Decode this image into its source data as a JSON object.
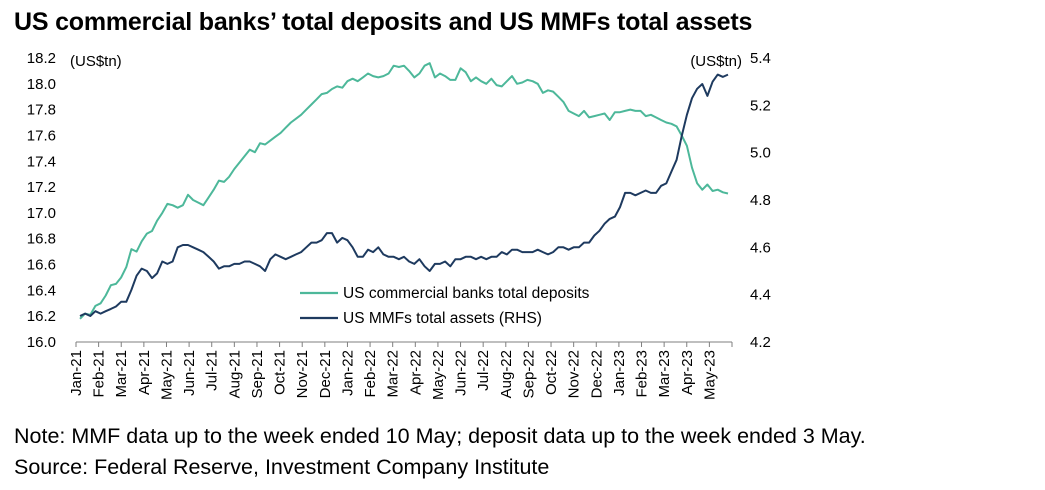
{
  "chart_data": {
    "type": "line",
    "title": "US commercial banks’ total deposits and US MMFs total assets",
    "left_unit": "(US$tn)",
    "right_unit": "(US$tn)",
    "ylim_left": [
      16.0,
      18.2
    ],
    "ylim_right": [
      4.2,
      5.4
    ],
    "left_ticks": [
      "18.2",
      "18.0",
      "17.8",
      "17.6",
      "17.4",
      "17.2",
      "17.0",
      "16.8",
      "16.6",
      "16.4",
      "16.2",
      "16.0"
    ],
    "right_ticks": [
      "5.4",
      "5.2",
      "5.0",
      "4.8",
      "4.6",
      "4.4",
      "4.2"
    ],
    "x_ticks": [
      "Jan-21",
      "Feb-21",
      "Mar-21",
      "Apr-21",
      "May-21",
      "Jun-21",
      "Jul-21",
      "Aug-21",
      "Sep-21",
      "Oct-21",
      "Nov-21",
      "Dec-21",
      "Jan-22",
      "Feb-22",
      "Mar-22",
      "Apr-22",
      "May-22",
      "Jun-22",
      "Jul-22",
      "Aug-22",
      "Sep-22",
      "Oct-22",
      "Nov-22",
      "Dec-22",
      "Jan-23",
      "Feb-23",
      "Mar-23",
      "Apr-23",
      "May-23"
    ],
    "grid": false,
    "legend_position": "center",
    "series": [
      {
        "name": "US commercial banks total deposits",
        "axis": "left",
        "color": "#4db89a",
        "values": [
          16.18,
          16.22,
          16.21,
          16.28,
          16.3,
          16.36,
          16.44,
          16.45,
          16.5,
          16.58,
          16.72,
          16.7,
          16.78,
          16.84,
          16.86,
          16.94,
          17.0,
          17.07,
          17.06,
          17.04,
          17.06,
          17.14,
          17.1,
          17.08,
          17.06,
          17.12,
          17.18,
          17.25,
          17.24,
          17.28,
          17.34,
          17.39,
          17.44,
          17.49,
          17.47,
          17.54,
          17.53,
          17.56,
          17.59,
          17.62,
          17.66,
          17.7,
          17.73,
          17.76,
          17.8,
          17.84,
          17.88,
          17.92,
          17.93,
          17.96,
          17.98,
          17.97,
          18.02,
          18.04,
          18.02,
          18.05,
          18.08,
          18.06,
          18.05,
          18.06,
          18.08,
          18.14,
          18.13,
          18.14,
          18.1,
          18.05,
          18.08,
          18.14,
          18.16,
          18.05,
          18.08,
          18.06,
          18.03,
          18.03,
          18.12,
          18.09,
          18.02,
          18.05,
          18.02,
          18.0,
          18.04,
          17.99,
          17.98,
          18.02,
          18.06,
          18.0,
          18.01,
          18.03,
          18.02,
          18.0,
          17.93,
          17.95,
          17.94,
          17.9,
          17.86,
          17.79,
          17.77,
          17.75,
          17.79,
          17.74,
          17.75,
          17.76,
          17.77,
          17.72,
          17.78,
          17.78,
          17.79,
          17.8,
          17.79,
          17.79,
          17.75,
          17.76,
          17.74,
          17.72,
          17.7,
          17.69,
          17.67,
          17.6,
          17.52,
          17.35,
          17.23,
          17.18,
          17.22,
          17.17,
          17.18,
          17.16,
          17.15
        ]
      },
      {
        "name": "US MMFs total assets (RHS)",
        "axis": "right",
        "color": "#1e3a5f",
        "values": [
          4.31,
          4.32,
          4.31,
          4.33,
          4.32,
          4.33,
          4.34,
          4.35,
          4.37,
          4.37,
          4.42,
          4.48,
          4.51,
          4.5,
          4.47,
          4.49,
          4.54,
          4.53,
          4.54,
          4.6,
          4.61,
          4.61,
          4.6,
          4.59,
          4.58,
          4.56,
          4.54,
          4.51,
          4.52,
          4.52,
          4.53,
          4.53,
          4.54,
          4.54,
          4.53,
          4.52,
          4.5,
          4.55,
          4.57,
          4.56,
          4.55,
          4.56,
          4.57,
          4.58,
          4.6,
          4.62,
          4.62,
          4.63,
          4.66,
          4.66,
          4.62,
          4.64,
          4.63,
          4.6,
          4.56,
          4.56,
          4.59,
          4.58,
          4.6,
          4.57,
          4.56,
          4.56,
          4.55,
          4.56,
          4.54,
          4.53,
          4.55,
          4.52,
          4.5,
          4.53,
          4.53,
          4.54,
          4.52,
          4.55,
          4.55,
          4.56,
          4.56,
          4.55,
          4.56,
          4.55,
          4.56,
          4.56,
          4.58,
          4.57,
          4.59,
          4.59,
          4.58,
          4.58,
          4.58,
          4.59,
          4.58,
          4.57,
          4.58,
          4.6,
          4.6,
          4.59,
          4.6,
          4.6,
          4.62,
          4.62,
          4.65,
          4.67,
          4.7,
          4.72,
          4.73,
          4.77,
          4.83,
          4.83,
          4.82,
          4.83,
          4.84,
          4.83,
          4.83,
          4.86,
          4.87,
          4.92,
          4.97,
          5.07,
          5.16,
          5.23,
          5.27,
          5.29,
          5.24,
          5.3,
          5.33,
          5.32,
          5.33
        ]
      }
    ]
  },
  "footer": {
    "note": "Note: MMF data up to the week ended 10 May; deposit data up to the week ended 3 May.",
    "source": "Source: Federal Reserve, Investment Company Institute"
  }
}
